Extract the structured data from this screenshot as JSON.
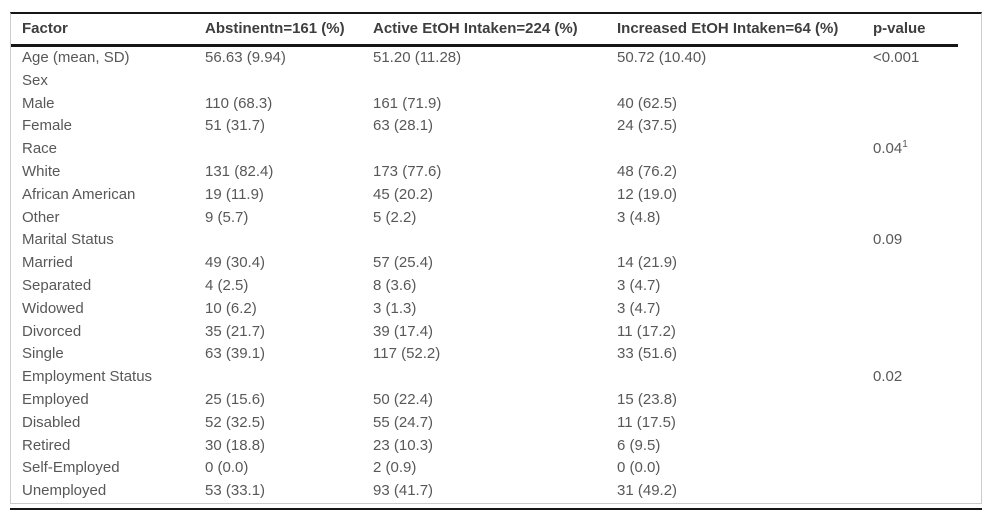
{
  "table": {
    "columns": [
      "Factor",
      "Abstinentn=161 (%)",
      "Active EtOH Intaken=224 (%)",
      "Increased EtOH Intaken=64 (%)",
      "p-value"
    ],
    "column_keys": [
      "factor",
      "abstinent",
      "active-etoh",
      "increased-etoh",
      "p-value"
    ],
    "rows": [
      {
        "cells": [
          "Age (mean, SD)",
          "56.63 (9.94)",
          "51.20 (11.28)",
          "50.72 (10.40)",
          "<0.001"
        ],
        "p_superscript": ""
      },
      {
        "cells": [
          "Sex",
          "",
          "",
          "",
          ""
        ],
        "p_superscript": ""
      },
      {
        "cells": [
          "Male",
          "110 (68.3)",
          "161 (71.9)",
          "40 (62.5)",
          ""
        ],
        "p_superscript": ""
      },
      {
        "cells": [
          "Female",
          "51 (31.7)",
          "63 (28.1)",
          "24 (37.5)",
          ""
        ],
        "p_superscript": ""
      },
      {
        "cells": [
          "Race",
          "",
          "",
          "",
          "0.04"
        ],
        "p_superscript": "1"
      },
      {
        "cells": [
          "White",
          "131 (82.4)",
          "173 (77.6)",
          "48 (76.2)",
          ""
        ],
        "p_superscript": ""
      },
      {
        "cells": [
          "African American",
          "19 (11.9)",
          "45 (20.2)",
          "12 (19.0)",
          ""
        ],
        "p_superscript": ""
      },
      {
        "cells": [
          "Other",
          "9 (5.7)",
          "5 (2.2)",
          "3 (4.8)",
          ""
        ],
        "p_superscript": ""
      },
      {
        "cells": [
          "Marital Status",
          "",
          "",
          "",
          "0.09"
        ],
        "p_superscript": ""
      },
      {
        "cells": [
          "Married",
          "49 (30.4)",
          "57 (25.4)",
          "14 (21.9)",
          ""
        ],
        "p_superscript": ""
      },
      {
        "cells": [
          "Separated",
          "4 (2.5)",
          "8 (3.6)",
          "3 (4.7)",
          ""
        ],
        "p_superscript": ""
      },
      {
        "cells": [
          "Widowed",
          "10 (6.2)",
          "3 (1.3)",
          "3 (4.7)",
          ""
        ],
        "p_superscript": ""
      },
      {
        "cells": [
          "Divorced",
          "35 (21.7)",
          "39 (17.4)",
          "11 (17.2)",
          ""
        ],
        "p_superscript": ""
      },
      {
        "cells": [
          "Single",
          "63 (39.1)",
          "117 (52.2)",
          "33 (51.6)",
          ""
        ],
        "p_superscript": ""
      },
      {
        "cells": [
          "Employment Status",
          "",
          "",
          "",
          "0.02"
        ],
        "p_superscript": ""
      },
      {
        "cells": [
          "Employed",
          "25 (15.6)",
          "50 (22.4)",
          "15 (23.8)",
          ""
        ],
        "p_superscript": ""
      },
      {
        "cells": [
          "Disabled",
          "52 (32.5)",
          "55 (24.7)",
          "11 (17.5)",
          ""
        ],
        "p_superscript": ""
      },
      {
        "cells": [
          "Retired",
          "30 (18.8)",
          "23 (10.3)",
          "6 (9.5)",
          ""
        ],
        "p_superscript": ""
      },
      {
        "cells": [
          "Self-Employed",
          "0 (0.0)",
          "2 (0.9)",
          "0 (0.0)",
          ""
        ],
        "p_superscript": ""
      },
      {
        "cells": [
          "Unemployed",
          "53 (33.1)",
          "93 (41.7)",
          "31 (49.2)",
          ""
        ],
        "p_superscript": ""
      }
    ],
    "colors": {
      "rule_black": "#161616",
      "border_gray": "#cbcbcb",
      "header_text": "#3e3e3e",
      "body_text": "#58585a",
      "background": "#ffffff"
    }
  }
}
